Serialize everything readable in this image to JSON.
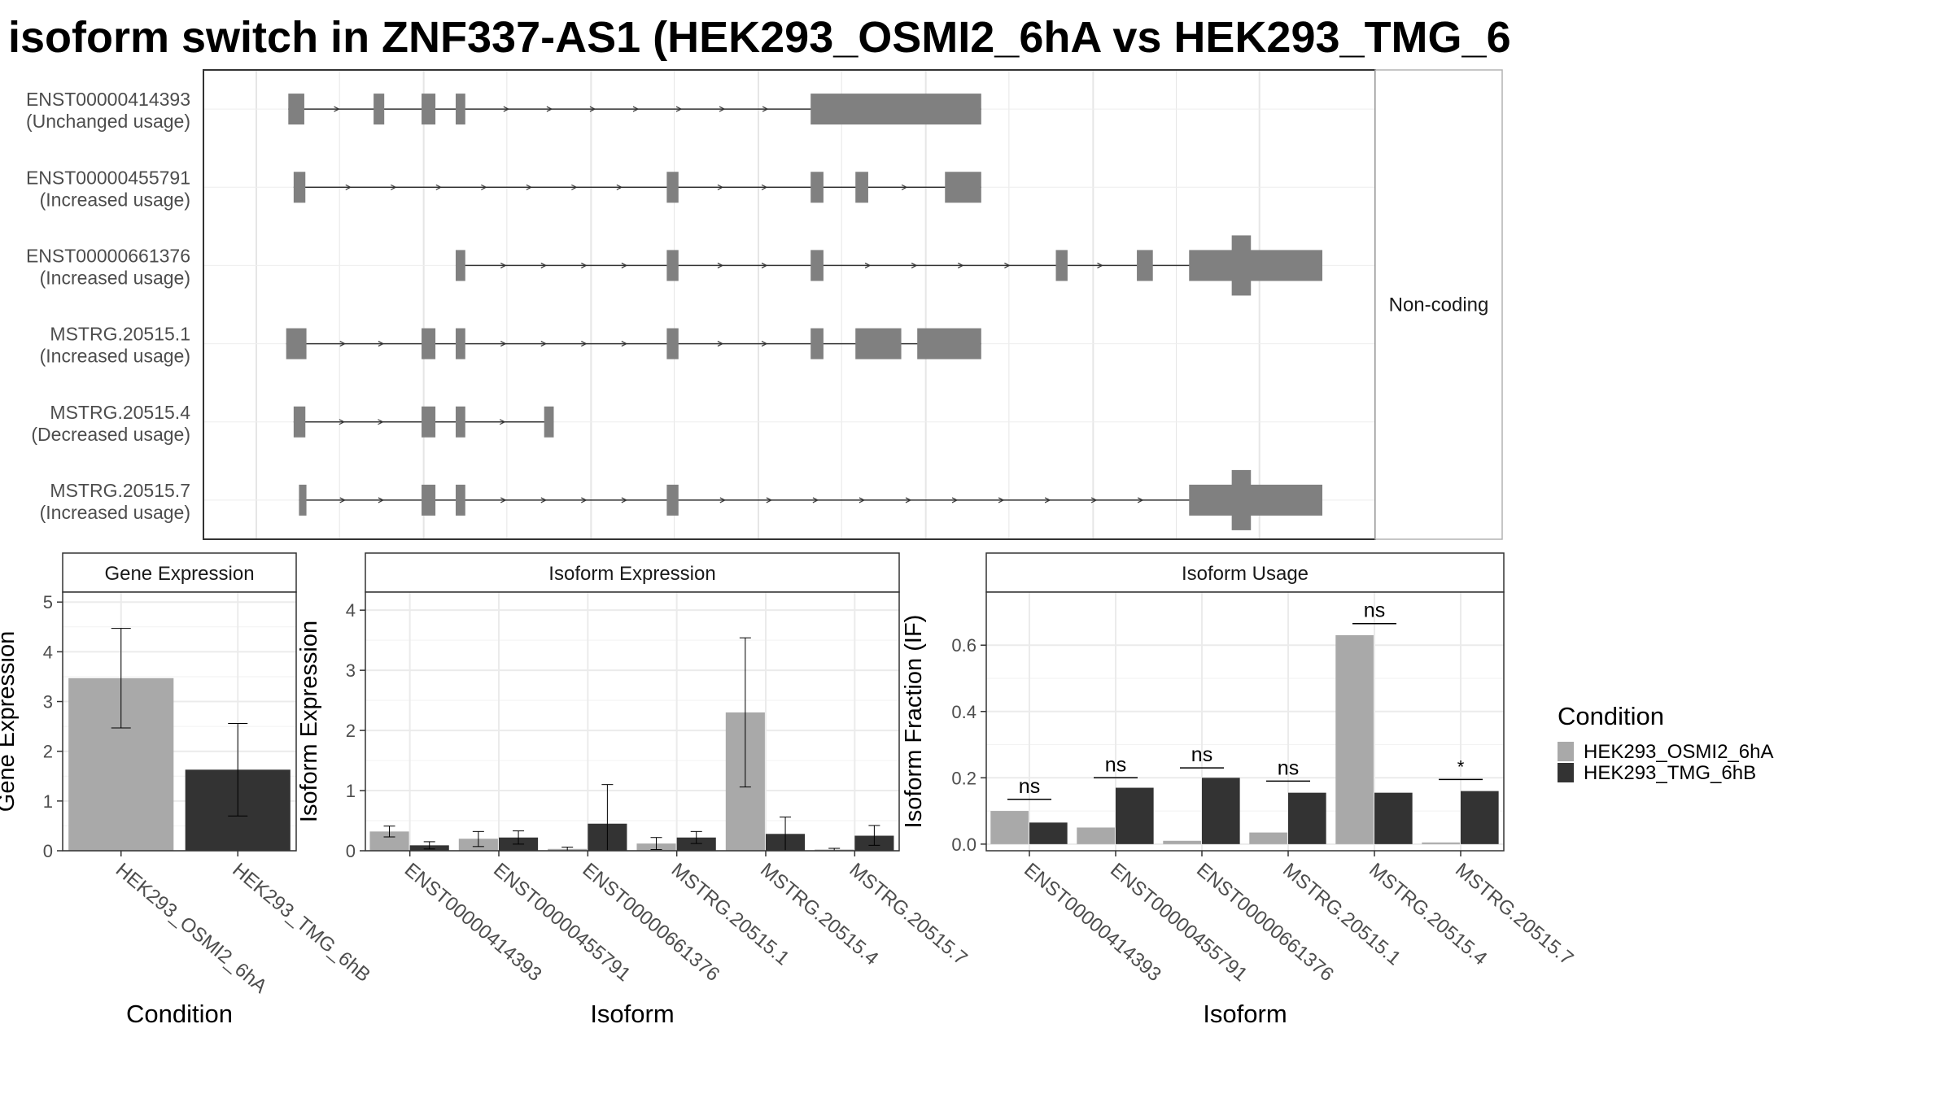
{
  "title": "isoform switch in ZNF337-AS1 (HEK293_OSMI2_6hA vs HEK293_TMG_6",
  "colors": {
    "osmi": "#a9a9a9",
    "tmg": "#333333",
    "exon": "#808080",
    "grid": "#ebebeb",
    "strip_bg": "#ffffff"
  },
  "structure": {
    "facet_label": "Non-coding",
    "transcripts": [
      {
        "id": "ENST00000414393",
        "usage": "(Unchanged usage)",
        "exons": [
          [
            0.03,
            0.045
          ],
          [
            0.11,
            0.12
          ],
          [
            0.155,
            0.168
          ],
          [
            0.187,
            0.196
          ],
          [
            0.52,
            0.68
          ]
        ]
      },
      {
        "id": "ENST00000455791",
        "usage": "(Increased usage)",
        "exons": [
          [
            0.035,
            0.046
          ],
          [
            0.385,
            0.396
          ],
          [
            0.52,
            0.532
          ],
          [
            0.562,
            0.574
          ],
          [
            0.646,
            0.68
          ]
        ]
      },
      {
        "id": "ENST00000661376",
        "usage": "(Increased usage)",
        "exons": [
          [
            0.187,
            0.196
          ],
          [
            0.385,
            0.396
          ],
          [
            0.52,
            0.532
          ],
          [
            0.75,
            0.761
          ],
          [
            0.826,
            0.841
          ],
          [
            0.875,
            1.0
          ]
        ],
        "thick": [
          0.915,
          0.933
        ]
      },
      {
        "id": "MSTRG.20515.1",
        "usage": "(Increased usage)",
        "exons": [
          [
            0.028,
            0.047
          ],
          [
            0.155,
            0.168
          ],
          [
            0.187,
            0.196
          ],
          [
            0.385,
            0.396
          ],
          [
            0.52,
            0.532
          ],
          [
            0.562,
            0.605
          ],
          [
            0.62,
            0.68
          ]
        ]
      },
      {
        "id": "MSTRG.20515.4",
        "usage": "(Decreased usage)",
        "exons": [
          [
            0.035,
            0.046
          ],
          [
            0.155,
            0.168
          ],
          [
            0.187,
            0.196
          ],
          [
            0.27,
            0.279
          ]
        ]
      },
      {
        "id": "MSTRG.20515.7",
        "usage": "(Increased usage)",
        "exons": [
          [
            0.04,
            0.047
          ],
          [
            0.155,
            0.168
          ],
          [
            0.187,
            0.196
          ],
          [
            0.385,
            0.396
          ],
          [
            0.875,
            1.0
          ]
        ],
        "thick": [
          0.915,
          0.933
        ]
      }
    ]
  },
  "chart_data": [
    {
      "type": "bar",
      "title": "Gene Expression",
      "xlabel": "Condition",
      "ylabel": "Gene Expression",
      "ylim": [
        0,
        5.2
      ],
      "yticks": [
        0,
        1,
        2,
        3,
        4,
        5
      ],
      "categories": [
        "HEK293_OSMI2_6hA",
        "HEK293_TMG_6hB"
      ],
      "values": [
        3.47,
        1.63
      ],
      "errors": [
        [
          2.47,
          4.47
        ],
        [
          0.7,
          2.56
        ]
      ],
      "colors_by_category": [
        "osmi",
        "tmg"
      ]
    },
    {
      "type": "bar",
      "title": "Isoform Expression",
      "xlabel": "Isoform",
      "ylabel": "Isoform Expression",
      "ylim": [
        0,
        4.3
      ],
      "yticks": [
        0,
        1,
        2,
        3,
        4
      ],
      "categories": [
        "ENST00000414393",
        "ENST00000455791",
        "ENST00000661376",
        "MSTRG.20515.1",
        "MSTRG.20515.4",
        "MSTRG.20515.7"
      ],
      "series": [
        {
          "name": "HEK293_OSMI2_6hA",
          "color": "osmi",
          "values": [
            0.32,
            0.2,
            0.03,
            0.12,
            2.3,
            0.02
          ],
          "errors": [
            [
              0.23,
              0.41
            ],
            [
              0.07,
              0.32
            ],
            [
              0.0,
              0.06
            ],
            [
              0.02,
              0.22
            ],
            [
              1.06,
              3.54
            ],
            [
              0.0,
              0.04
            ]
          ]
        },
        {
          "name": "HEK293_TMG_6hB",
          "color": "tmg",
          "values": [
            0.09,
            0.22,
            0.45,
            0.22,
            0.28,
            0.25
          ],
          "errors": [
            [
              0.03,
              0.15
            ],
            [
              0.11,
              0.33
            ],
            [
              0.0,
              1.1
            ],
            [
              0.12,
              0.32
            ],
            [
              0.0,
              0.56
            ],
            [
              0.09,
              0.42
            ]
          ]
        }
      ]
    },
    {
      "type": "bar",
      "title": "Isoform Usage",
      "xlabel": "Isoform",
      "ylabel": "Isoform Fraction (IF)",
      "ylim": [
        -0.02,
        0.76
      ],
      "yticks": [
        0.0,
        0.2,
        0.4,
        0.6
      ],
      "ytick_labels": [
        "0.0",
        "0.2",
        "0.4",
        "0.6"
      ],
      "categories": [
        "ENST00000414393",
        "ENST00000455791",
        "ENST00000661376",
        "MSTRG.20515.1",
        "MSTRG.20515.4",
        "MSTRG.20515.7"
      ],
      "series": [
        {
          "name": "HEK293_OSMI2_6hA",
          "color": "osmi",
          "values": [
            0.1,
            0.05,
            0.01,
            0.035,
            0.63,
            0.005
          ]
        },
        {
          "name": "HEK293_TMG_6hB",
          "color": "tmg",
          "values": [
            0.065,
            0.17,
            0.2,
            0.155,
            0.155,
            0.16
          ]
        }
      ],
      "significance": [
        {
          "label": "ns",
          "y": 0.135
        },
        {
          "label": "ns",
          "y": 0.2
        },
        {
          "label": "ns",
          "y": 0.23
        },
        {
          "label": "ns",
          "y": 0.19
        },
        {
          "label": "ns",
          "y": 0.665
        },
        {
          "label": "*",
          "y": 0.195
        }
      ]
    }
  ],
  "legend": {
    "title": "Condition",
    "items": [
      {
        "label": "HEK293_OSMI2_6hA",
        "color": "osmi"
      },
      {
        "label": "HEK293_TMG_6hB",
        "color": "tmg"
      }
    ]
  }
}
